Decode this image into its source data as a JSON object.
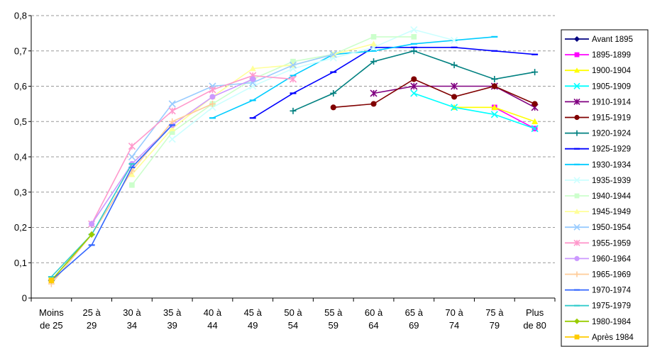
{
  "chart_data": {
    "type": "line",
    "title": "",
    "xlabel": "",
    "ylabel": "",
    "categories": [
      [
        "Moins",
        "de 25"
      ],
      [
        "25 à",
        "29"
      ],
      [
        "30 à",
        "34"
      ],
      [
        "35 à",
        "39"
      ],
      [
        "40 à",
        "44"
      ],
      [
        "45 à",
        "49"
      ],
      [
        "50 à",
        "54"
      ],
      [
        "55 à",
        "59"
      ],
      [
        "60 à",
        "64"
      ],
      [
        "65 à",
        "69"
      ],
      [
        "70 à",
        "74"
      ],
      [
        "75 à",
        "79"
      ],
      [
        "Plus",
        "de 80"
      ]
    ],
    "ylim": [
      0,
      0.8
    ],
    "yticks": [
      "0",
      "0,1",
      "0,2",
      "0,3",
      "0,4",
      "0,5",
      "0,6",
      "0,7",
      "0,8"
    ],
    "grid": "horizontal dashed",
    "legend_position": "right",
    "series": [
      {
        "name": "Avant 1895",
        "color": "#000080",
        "marker": "diamond",
        "values": [
          null,
          null,
          null,
          null,
          null,
          null,
          null,
          null,
          null,
          null,
          null,
          null,
          null
        ]
      },
      {
        "name": "1895-1899",
        "color": "#FF00FF",
        "marker": "square",
        "values": [
          null,
          null,
          null,
          null,
          null,
          null,
          null,
          null,
          null,
          null,
          null,
          0.54,
          0.48
        ]
      },
      {
        "name": "1900-1904",
        "color": "#FFFF00",
        "marker": "triangle",
        "values": [
          null,
          null,
          null,
          null,
          null,
          null,
          null,
          null,
          null,
          null,
          0.54,
          0.54,
          0.5
        ]
      },
      {
        "name": "1905-1909",
        "color": "#00FFFF",
        "marker": "x",
        "values": [
          null,
          null,
          null,
          null,
          null,
          null,
          null,
          null,
          null,
          0.58,
          0.54,
          0.52,
          0.48
        ]
      },
      {
        "name": "1910-1914",
        "color": "#800080",
        "marker": "star",
        "values": [
          null,
          null,
          null,
          null,
          null,
          null,
          null,
          null,
          0.58,
          0.6,
          0.6,
          0.6,
          0.54
        ]
      },
      {
        "name": "1915-1919",
        "color": "#800000",
        "marker": "circle",
        "values": [
          null,
          null,
          null,
          null,
          null,
          null,
          null,
          0.54,
          0.55,
          0.62,
          0.57,
          0.6,
          0.55
        ]
      },
      {
        "name": "1920-1924",
        "color": "#008080",
        "marker": "plus",
        "values": [
          null,
          null,
          null,
          null,
          null,
          null,
          0.53,
          0.58,
          0.67,
          0.7,
          0.66,
          0.62,
          0.64
        ]
      },
      {
        "name": "1925-1929",
        "color": "#0000FF",
        "marker": "dash",
        "values": [
          null,
          null,
          null,
          null,
          null,
          0.51,
          0.58,
          0.64,
          0.71,
          0.71,
          0.71,
          0.7,
          0.69
        ]
      },
      {
        "name": "1930-1934",
        "color": "#00CCFF",
        "marker": "dash",
        "values": [
          null,
          null,
          null,
          null,
          0.51,
          0.56,
          0.63,
          0.69,
          0.7,
          0.72,
          0.73,
          0.74,
          null
        ]
      },
      {
        "name": "1935-1939",
        "color": "#CCFFFF",
        "marker": "x",
        "values": [
          null,
          null,
          null,
          0.45,
          0.54,
          0.6,
          0.65,
          0.68,
          0.71,
          0.76,
          0.73,
          null,
          null
        ]
      },
      {
        "name": "1940-1944",
        "color": "#CCFFCC",
        "marker": "square",
        "values": [
          null,
          null,
          0.32,
          0.47,
          0.55,
          0.62,
          0.67,
          0.69,
          0.74,
          0.74,
          null,
          null,
          null
        ]
      },
      {
        "name": "1945-1949",
        "color": "#FFFF99",
        "marker": "triangle",
        "values": [
          null,
          null,
          0.35,
          0.48,
          0.57,
          0.65,
          0.66,
          0.69,
          0.72,
          null,
          null,
          null,
          null
        ]
      },
      {
        "name": "1950-1954",
        "color": "#99CCFF",
        "marker": "x",
        "values": [
          null,
          null,
          0.4,
          0.55,
          0.6,
          0.61,
          0.66,
          0.69,
          null,
          null,
          null,
          null,
          null
        ]
      },
      {
        "name": "1955-1959",
        "color": "#FF99CC",
        "marker": "star",
        "values": [
          null,
          0.21,
          0.43,
          0.53,
          0.59,
          0.63,
          0.62,
          null,
          null,
          null,
          null,
          null,
          null
        ]
      },
      {
        "name": "1960-1964",
        "color": "#CC99FF",
        "marker": "circle",
        "values": [
          null,
          0.21,
          0.38,
          0.49,
          0.57,
          0.62,
          null,
          null,
          null,
          null,
          null,
          null,
          null
        ]
      },
      {
        "name": "1965-1969",
        "color": "#FFCC99",
        "marker": "plus",
        "values": [
          0.04,
          0.18,
          0.36,
          0.5,
          0.55,
          null,
          null,
          null,
          null,
          null,
          null,
          null,
          null
        ]
      },
      {
        "name": "1970-1974",
        "color": "#3366FF",
        "marker": "dash",
        "values": [
          0.05,
          0.15,
          0.37,
          0.49,
          null,
          null,
          null,
          null,
          null,
          null,
          null,
          null,
          null
        ]
      },
      {
        "name": "1975-1979",
        "color": "#33CCCC",
        "marker": "dash",
        "values": [
          0.06,
          0.18,
          0.38,
          null,
          null,
          null,
          null,
          null,
          null,
          null,
          null,
          null,
          null
        ]
      },
      {
        "name": "1980-1984",
        "color": "#99CC00",
        "marker": "diamond",
        "values": [
          0.05,
          0.18,
          null,
          null,
          null,
          null,
          null,
          null,
          null,
          null,
          null,
          null,
          null
        ]
      },
      {
        "name": "Après 1984",
        "color": "#FFCC00",
        "marker": "square",
        "values": [
          0.05,
          null,
          null,
          null,
          null,
          null,
          null,
          null,
          null,
          null,
          null,
          null,
          null
        ]
      }
    ]
  }
}
